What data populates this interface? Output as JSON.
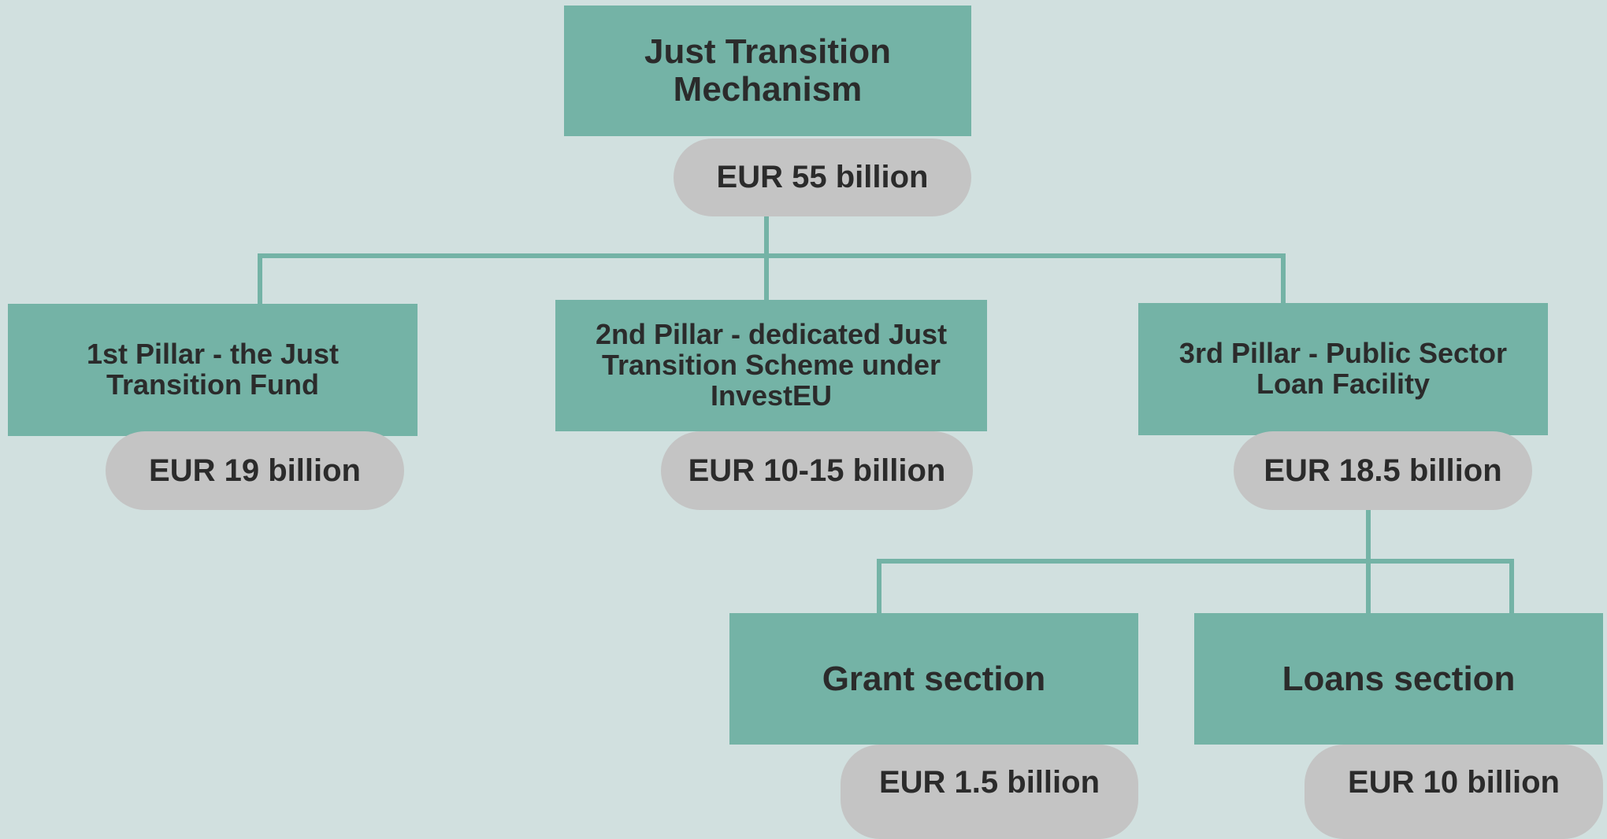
{
  "nodes": [
    {
      "label": [
        "Just Transition",
        "Mechanism"
      ],
      "amount": "EUR 55 billion"
    },
    {
      "label": [
        "1st Pillar - the Just",
        "Transition Fund"
      ],
      "amount": "EUR 19 billion"
    },
    {
      "label": [
        "2nd Pillar - dedicated Just",
        "Transition Scheme under",
        "InvestEU"
      ],
      "amount": "EUR 10-15 billion"
    },
    {
      "label": [
        "3rd Pillar - Public Sector",
        "Loan Facility"
      ],
      "amount": "EUR 18.5 billion"
    },
    {
      "label": [
        "Grant section"
      ],
      "amount": "EUR 1.5 billion"
    },
    {
      "label": [
        "Loans section"
      ],
      "amount": "EUR 10 billion"
    }
  ]
}
